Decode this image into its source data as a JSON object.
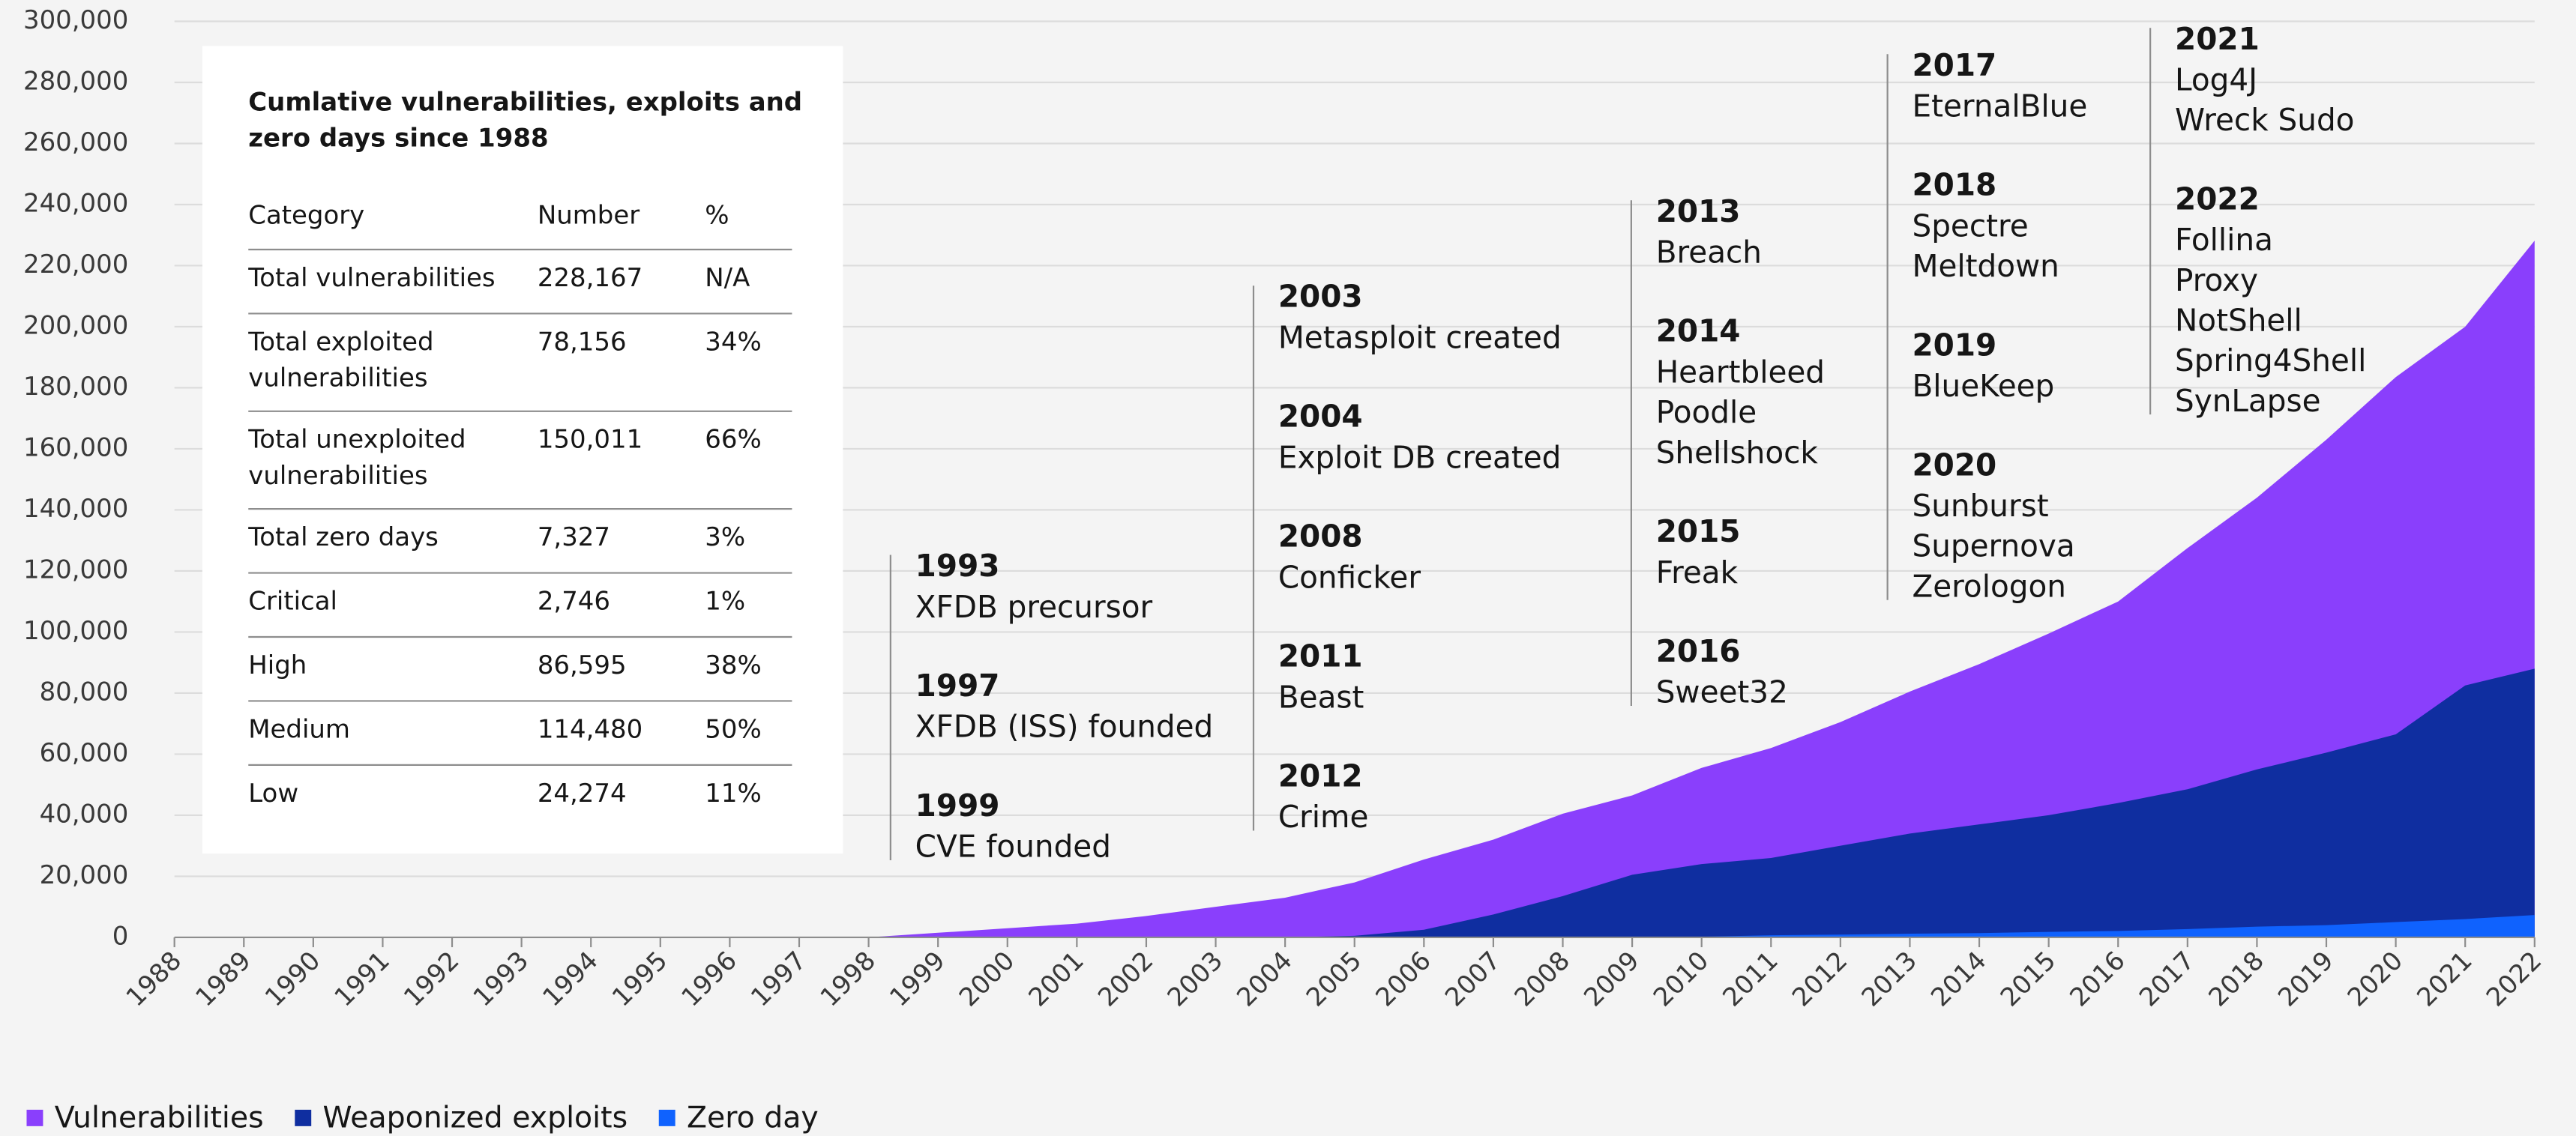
{
  "chart_data": {
    "type": "area",
    "categories": [
      "1988",
      "1989",
      "1990",
      "1991",
      "1992",
      "1993",
      "1994",
      "1995",
      "1996",
      "1997",
      "1998",
      "1999",
      "2000",
      "2001",
      "2002",
      "2003",
      "2004",
      "2005",
      "2006",
      "2007",
      "2008",
      "2009",
      "2010",
      "2011",
      "2012",
      "2013",
      "2014",
      "2015",
      "2016",
      "2017",
      "2018",
      "2019",
      "2020",
      "2021",
      "2022"
    ],
    "series": [
      {
        "name": "Vulnerabilities",
        "color": "#8a3ffc",
        "values": [
          0,
          0,
          0,
          0,
          0,
          0,
          0,
          0,
          0,
          0,
          0,
          1500,
          3000,
          4500,
          7000,
          10000,
          13000,
          18000,
          25500,
          32000,
          40500,
          46500,
          55500,
          62000,
          70500,
          80500,
          89500,
          99500,
          110000,
          127500,
          144000,
          163000,
          183500,
          200000,
          228167
        ]
      },
      {
        "name": "Weaponized exploits",
        "color": "#0f2ea0",
        "values": [
          0,
          0,
          0,
          0,
          0,
          0,
          0,
          0,
          0,
          0,
          0,
          0,
          0,
          0,
          0,
          0,
          0,
          500,
          2500,
          7500,
          13500,
          20500,
          24000,
          26000,
          30000,
          34000,
          37000,
          40000,
          44000,
          48500,
          55000,
          60500,
          66500,
          82500,
          88000
        ]
      },
      {
        "name": "Zero day",
        "color": "#0f62fe",
        "values": [
          0,
          0,
          0,
          0,
          0,
          0,
          0,
          0,
          0,
          0,
          0,
          0,
          0,
          0,
          0,
          0,
          0,
          0,
          0,
          0,
          0,
          0,
          200,
          700,
          900,
          1200,
          1400,
          1800,
          2100,
          2700,
          3500,
          4000,
          5000,
          6000,
          7327
        ]
      }
    ],
    "ylim": [
      0,
      300000
    ],
    "yticks": [
      0,
      {
        "value": 20000,
        "label": "20,000"
      },
      {
        "value": 40000,
        "label": "40,000"
      },
      {
        "value": 60000,
        "label": "60,000"
      },
      {
        "value": 80000,
        "label": "80,000"
      },
      {
        "value": 100000,
        "label": "100,000"
      },
      {
        "value": 120000,
        "label": "120,000"
      },
      {
        "value": 140000,
        "label": "140,000"
      },
      {
        "value": 160000,
        "label": "160,000"
      },
      {
        "value": 180000,
        "label": "180,000"
      },
      {
        "value": 200000,
        "label": "200,000"
      },
      {
        "value": 220000,
        "label": "220,000"
      },
      {
        "value": 240000,
        "label": "240,000"
      },
      {
        "value": 260000,
        "label": "260,000"
      },
      {
        "value": 280000,
        "label": "280,000"
      },
      {
        "value": 300000,
        "label": "300,000"
      }
    ],
    "grid": true,
    "legend": "bottom-left",
    "table": {
      "title": [
        "Cumlative vulnerabilities, exploits and",
        "zero days since 1988"
      ],
      "header": [
        "Category",
        "Number",
        "%"
      ],
      "rows": [
        {
          "category": [
            "Total vulnerabilities"
          ],
          "number": "228,167",
          "percent": "N/A"
        },
        {
          "category": [
            "Total exploited",
            "vulnerabilities"
          ],
          "number": "78,156",
          "percent": "34%"
        },
        {
          "category": [
            "Total unexploited",
            "vulnerabilities"
          ],
          "number": "150,011",
          "percent": "66%"
        },
        {
          "category": [
            "Total zero days"
          ],
          "number": "7,327",
          "percent": "3%"
        },
        {
          "category": [
            "Critical"
          ],
          "number": "2,746",
          "percent": "1%"
        },
        {
          "category": [
            "High"
          ],
          "number": "86,595",
          "percent": "38%"
        },
        {
          "category": [
            "Medium"
          ],
          "number": "114,480",
          "percent": "50%"
        },
        {
          "category": [
            "Low"
          ],
          "number": "24,274",
          "percent": "11%"
        }
      ]
    },
    "annotations": [
      [
        {
          "year": "1993",
          "events": [
            "XFDB precursor"
          ]
        },
        {
          "year": "1997",
          "events": [
            "XFDB (ISS) founded"
          ]
        },
        {
          "year": "1999",
          "events": [
            "CVE founded"
          ]
        }
      ],
      [
        {
          "year": "2003",
          "events": [
            "Metasploit created"
          ]
        },
        {
          "year": "2004",
          "events": [
            "Exploit DB created"
          ]
        },
        {
          "year": "2008",
          "events": [
            "Conficker"
          ]
        },
        {
          "year": "2011",
          "events": [
            "Beast"
          ]
        },
        {
          "year": "2012",
          "events": [
            "Crime"
          ]
        }
      ],
      [
        {
          "year": "2013",
          "events": [
            "Breach"
          ]
        },
        {
          "year": "2014",
          "events": [
            "Heartbleed",
            "Poodle",
            "Shellshock"
          ]
        },
        {
          "year": "2015",
          "events": [
            "Freak"
          ]
        },
        {
          "year": "2016",
          "events": [
            "Sweet32"
          ]
        }
      ],
      [
        {
          "year": "2017",
          "events": [
            "EternalBlue"
          ]
        },
        {
          "year": "2018",
          "events": [
            "Spectre",
            "Meltdown"
          ]
        },
        {
          "year": "2019",
          "events": [
            "BlueKeep"
          ]
        },
        {
          "year": "2020",
          "events": [
            "Sunburst",
            "Supernova",
            "Zerologon"
          ]
        }
      ],
      [
        {
          "year": "2021",
          "events": [
            "Log4J",
            "Wreck Sudo"
          ]
        },
        {
          "year": "2022",
          "events": [
            "Follina",
            "Proxy",
            "NotShell",
            "Spring4Shell",
            "SynLapse"
          ]
        }
      ]
    ]
  }
}
